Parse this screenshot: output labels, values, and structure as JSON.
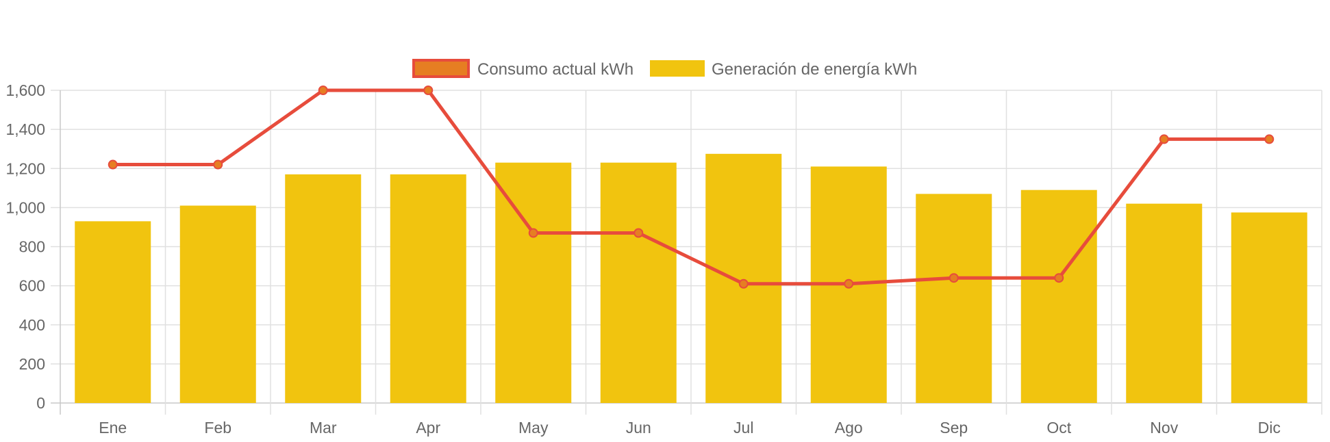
{
  "chart_data": {
    "type": "bar",
    "categories": [
      "Ene",
      "Feb",
      "Mar",
      "Apr",
      "May",
      "Jun",
      "Jul",
      "Ago",
      "Sep",
      "Oct",
      "Nov",
      "Dic"
    ],
    "y_ticks": [
      "0",
      "200",
      "400",
      "600",
      "800",
      "1,000",
      "1,200",
      "1,400",
      "1,600"
    ],
    "ylim": [
      0,
      1600
    ],
    "grid": true,
    "legend_position": "top-center",
    "series": [
      {
        "name": "Consumo actual kWh",
        "kind": "line",
        "color": "#e74c3c",
        "point_color": "#e67e22",
        "values": [
          1220,
          1220,
          1600,
          1600,
          870,
          870,
          610,
          610,
          640,
          640,
          1350,
          1350
        ]
      },
      {
        "name": "Generación de energía kWh",
        "kind": "bar",
        "color": "#f1c40f",
        "values": [
          930,
          1010,
          1170,
          1170,
          1230,
          1230,
          1275,
          1210,
          1070,
          1090,
          1020,
          975
        ]
      }
    ]
  }
}
